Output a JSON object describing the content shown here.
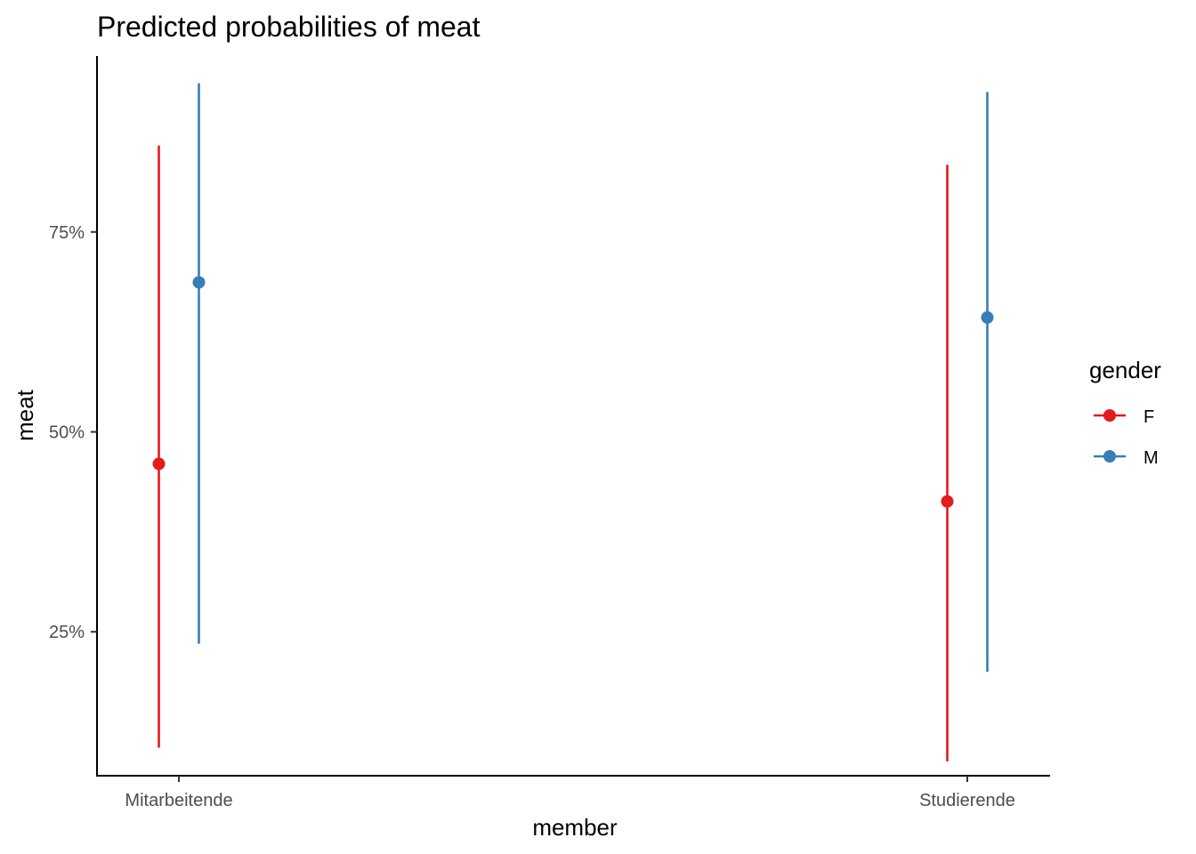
{
  "chart_data": {
    "type": "scatter",
    "title": "Predicted probabilities of meat",
    "xlabel": "member",
    "ylabel": "meat",
    "categories": [
      "Mitarbeitende",
      "Studierende"
    ],
    "ylim": [
      0.07,
      0.97
    ],
    "yticks": [
      0.25,
      0.5,
      0.75
    ],
    "ytick_labels": [
      "25%",
      "50%",
      "75%"
    ],
    "grid": false,
    "legend": {
      "title": "gender",
      "position": "right"
    },
    "series": [
      {
        "name": "F",
        "color": "#e41a1c",
        "values": [
          0.46,
          0.413
        ],
        "lower": [
          0.105,
          0.088
        ],
        "upper": [
          0.858,
          0.834
        ]
      },
      {
        "name": "M",
        "color": "#377eb8",
        "values": [
          0.687,
          0.643
        ],
        "lower": [
          0.235,
          0.2
        ],
        "upper": [
          0.936,
          0.925
        ]
      }
    ]
  }
}
